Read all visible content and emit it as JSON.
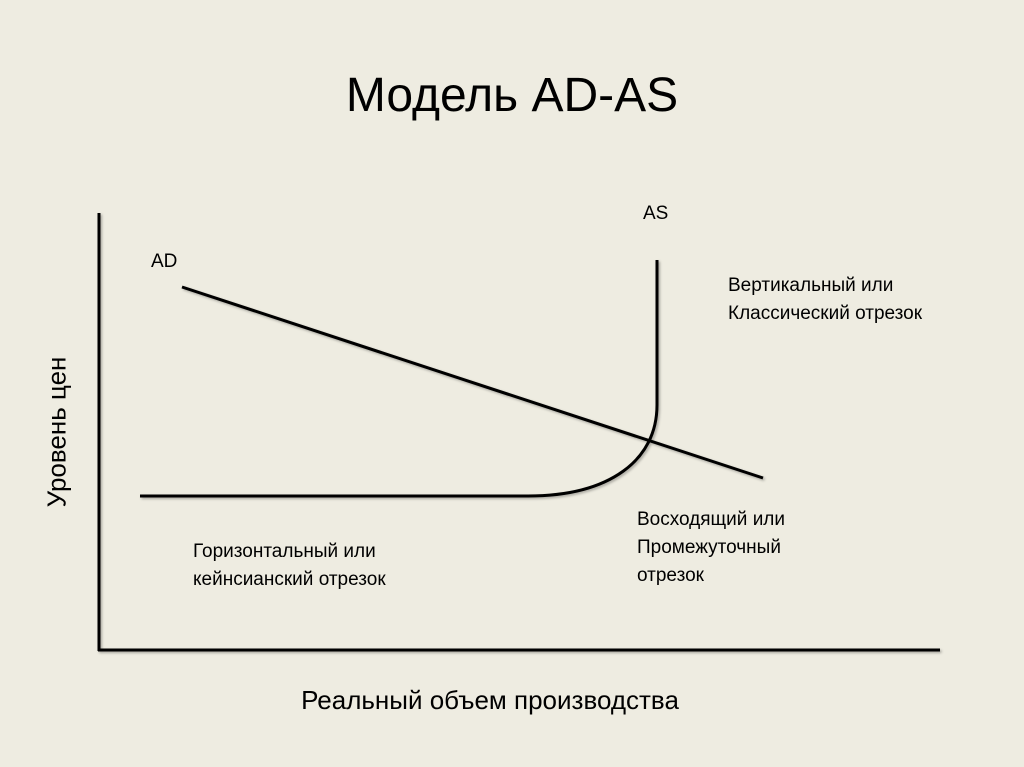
{
  "title": "Модель AD-AS",
  "diagram": {
    "y_axis_label": "Уровень цен",
    "x_axis_label": "Реальный объем производства",
    "curves": {
      "ad": "AD",
      "as": "AS"
    },
    "segments": {
      "vertical": [
        "Вертикальный или",
        "Классический отрезок"
      ],
      "intermediate": [
        "Восходящий или",
        "Промежуточный",
        "отрезок"
      ],
      "horizontal": [
        "Горизонтальный или",
        "кейнсианский отрезок"
      ]
    },
    "colors": {
      "background": "#eeece1",
      "lines": "#000000"
    }
  }
}
